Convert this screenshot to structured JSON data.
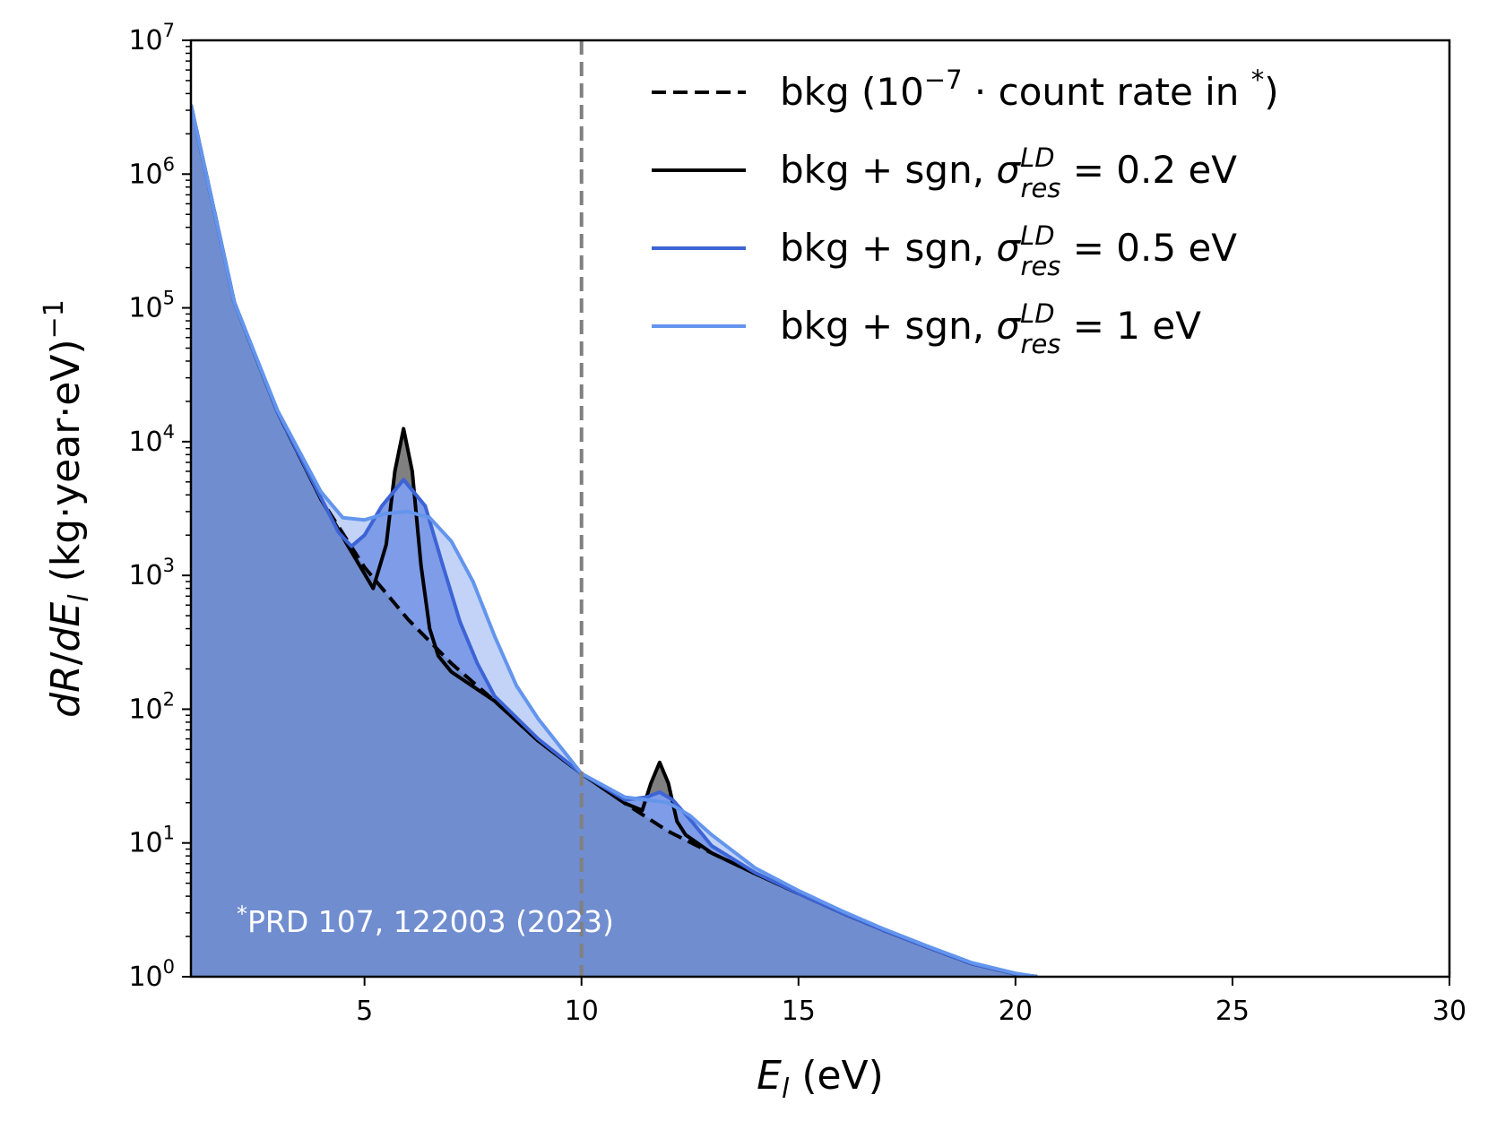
{
  "chart_data": {
    "type": "line",
    "xlabel": "E_l (eV)",
    "ylabel": "dR/dE_l (kg·year·eV)^-1",
    "xlim": [
      1,
      30
    ],
    "ylim": [
      1,
      10000000
    ],
    "yscale": "log",
    "xticks": [
      "5",
      "10",
      "15",
      "20",
      "25",
      "30"
    ],
    "yticks": [
      "10^0",
      "10^1",
      "10^2",
      "10^3",
      "10^4",
      "10^5",
      "10^6",
      "10^7"
    ],
    "vertical_reference_line": {
      "x": 10,
      "style": "dashed",
      "color": "#808080"
    },
    "legend_position": "top-right",
    "legend": [
      {
        "text": "bkg (10^−7 · count rate in *)",
        "style": "dashed",
        "color": "#000000"
      },
      {
        "text": "bkg + sgn, σ_res^LD = 0.2 eV",
        "style": "solid",
        "color": "#000000"
      },
      {
        "text": "bkg + sgn, σ_res^LD = 0.5 eV",
        "style": "solid",
        "color": "#3d64d6"
      },
      {
        "text": "bkg + sgn, σ_res^LD = 1 eV",
        "style": "solid",
        "color": "#6495ed"
      }
    ],
    "annotation": "* PRD 107, 122003 (2023)",
    "background_fill_color": "#708dcf",
    "series": [
      {
        "name": "bkg (10^−7 · count rate in *)",
        "style": "dashed",
        "color": "#000000",
        "x": [
          1,
          2,
          3,
          4,
          5,
          6,
          7,
          8,
          9,
          10,
          11,
          12,
          13,
          14,
          15,
          16,
          17,
          18,
          19,
          20,
          20.5
        ],
        "y": [
          3300000,
          110000,
          16500,
          3700,
          1150,
          470,
          220,
          115,
          58,
          33,
          19.8,
          12.2,
          8.4,
          5.9,
          4.2,
          3,
          2.2,
          1.65,
          1.25,
          1.05,
          1
        ]
      },
      {
        "name": "bkg + sgn, σ_res^LD = 0.2 eV",
        "style": "solid",
        "color": "#000000",
        "x": [
          1,
          2,
          3,
          4,
          4.6,
          5.2,
          5.5,
          5.7,
          5.9,
          6.1,
          6.3,
          6.5,
          6.7,
          7,
          8,
          9,
          10,
          11,
          11.4,
          11.6,
          11.8,
          12,
          12.2,
          12.4,
          13,
          14,
          15,
          16,
          17,
          18,
          19,
          20,
          20.5
        ],
        "y": [
          3300000,
          110000,
          16500,
          3700,
          1700,
          800,
          1700,
          6000,
          12500,
          6000,
          1200,
          400,
          250,
          190,
          115,
          58,
          33,
          19.8,
          17.5,
          28,
          40,
          28,
          14.5,
          11.5,
          8.4,
          5.9,
          4.2,
          3,
          2.2,
          1.65,
          1.25,
          1.05,
          1
        ]
      },
      {
        "name": "bkg + sgn, σ_res^LD = 0.5 eV",
        "style": "solid",
        "color": "#3d64d6",
        "x": [
          1,
          2,
          3,
          4,
          4.4,
          4.7,
          5,
          5.4,
          5.9,
          6.4,
          6.8,
          7.2,
          7.6,
          8,
          9,
          10,
          11,
          11.5,
          11.8,
          12.1,
          12.5,
          13,
          14,
          15,
          16,
          17,
          18,
          19,
          20,
          20.5
        ],
        "y": [
          3300000,
          110000,
          16500,
          3800,
          2100,
          1650,
          2000,
          3300,
          5200,
          3300,
          1200,
          450,
          220,
          125,
          60,
          33,
          21,
          22,
          24,
          21,
          15,
          9.5,
          6,
          4.2,
          3,
          2.2,
          1.65,
          1.25,
          1.05,
          1
        ]
      },
      {
        "name": "bkg + sgn, σ_res^LD = 1 eV",
        "style": "solid",
        "color": "#6495ed",
        "x": [
          1,
          2,
          3,
          4,
          4.5,
          5,
          5.5,
          6,
          6.5,
          7,
          7.5,
          8,
          8.5,
          9,
          10,
          11,
          11.5,
          12,
          12.5,
          13,
          14,
          15,
          16,
          17,
          18,
          19,
          20,
          20.5
        ],
        "y": [
          3300000,
          110000,
          17000,
          4200,
          2700,
          2600,
          2900,
          3000,
          2700,
          1800,
          900,
          350,
          150,
          85,
          33,
          22,
          21,
          20,
          16,
          11.5,
          6.5,
          4.4,
          3.1,
          2.25,
          1.68,
          1.27,
          1.06,
          1
        ]
      }
    ]
  }
}
